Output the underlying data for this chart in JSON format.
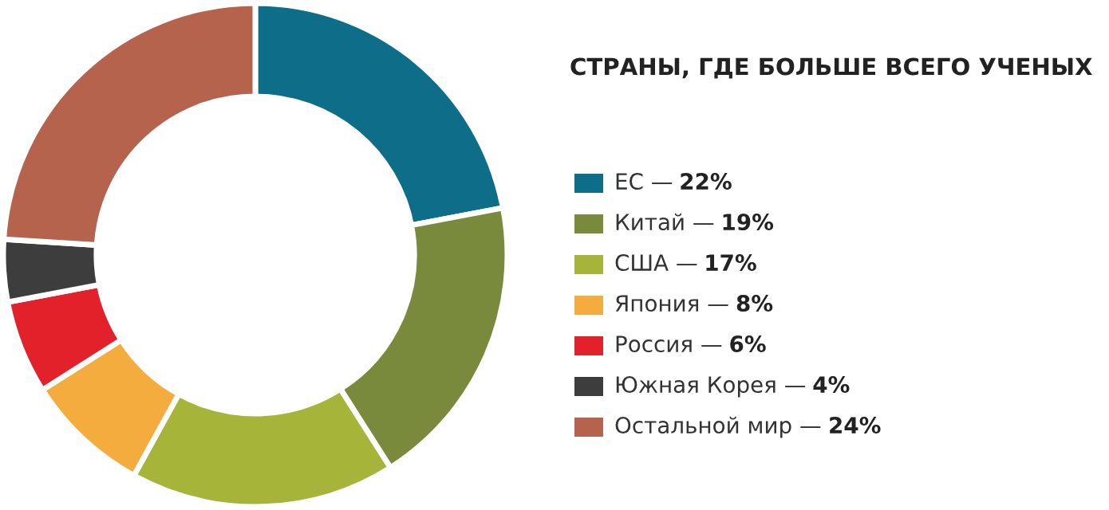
{
  "chart_data": {
    "type": "donut",
    "title": "СТРАНЫ, ГДЕ БОЛЬШЕ ВСЕГО УЧЕНЫХ",
    "categories": [
      "ЕС —",
      "Китай —",
      "США —",
      "Япония —",
      "Россия —",
      "Южная Корея —",
      "Остальной мир —"
    ],
    "values": [
      22,
      19,
      17,
      8,
      6,
      4,
      24
    ],
    "value_labels": [
      "22%",
      "19%",
      "17%",
      "8%",
      "6%",
      "4%",
      "24%"
    ],
    "colors": [
      "#0e6e8a",
      "#7a8a3c",
      "#a6b43a",
      "#f5ac3e",
      "#e3212a",
      "#3d3d3d",
      "#b5634d"
    ],
    "legend": "right"
  }
}
